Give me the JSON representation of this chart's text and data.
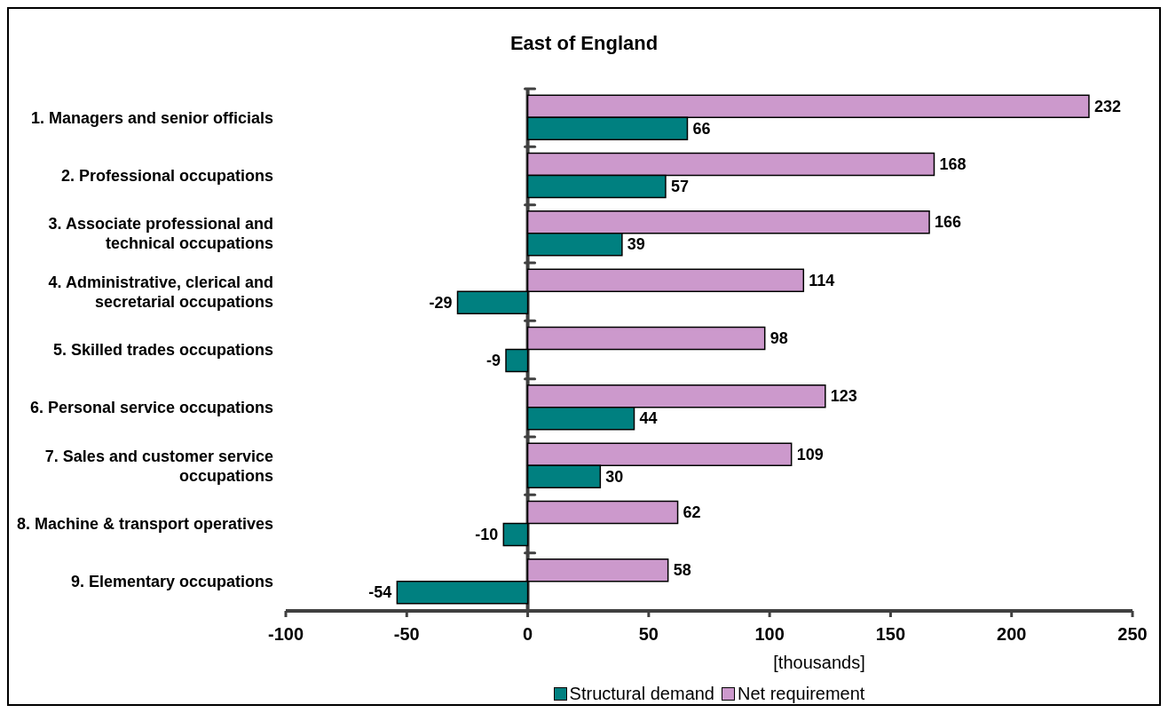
{
  "chart_data": {
    "type": "bar",
    "title": "East of England",
    "orientation": "horizontal",
    "categories": [
      "1. Managers and senior officials",
      "2. Professional occupations",
      "3. Associate professional and technical occupations",
      "4. Administrative, clerical and secretarial occupations",
      "5. Skilled trades occupations",
      "6. Personal service occupations",
      "7. Sales and customer service occupations",
      "8. Machine & transport operatives",
      "9. Elementary occupations"
    ],
    "series": [
      {
        "name": "Structural demand",
        "color": "#008080",
        "values": [
          66,
          57,
          39,
          -29,
          -9,
          44,
          30,
          -10,
          -54
        ]
      },
      {
        "name": "Net requirement",
        "color": "#cc99cc",
        "values": [
          232,
          168,
          166,
          114,
          98,
          123,
          109,
          62,
          58
        ]
      }
    ],
    "xlabel": "[thousands]",
    "xlim": [
      -100,
      250
    ],
    "xticks": [
      -100,
      -50,
      0,
      50,
      100,
      150,
      200,
      250
    ],
    "data_labels": true,
    "legend": "bottom"
  }
}
